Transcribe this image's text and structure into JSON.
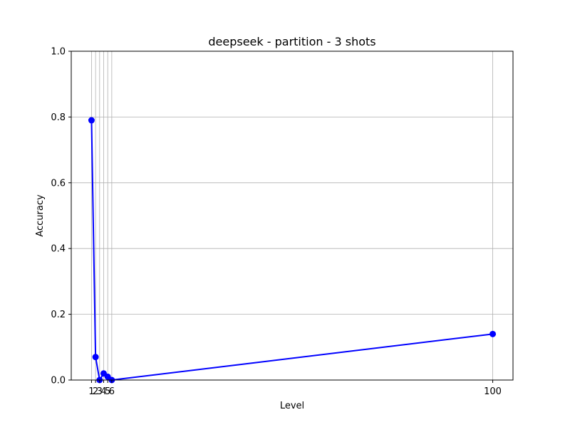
{
  "chart_data": {
    "type": "line",
    "title": "deepseek - partition - 3 shots",
    "xlabel": "Level",
    "ylabel": "Accuracy",
    "x": [
      1,
      2,
      3,
      4,
      5,
      6,
      100
    ],
    "x_tick_labels": [
      "1",
      "2",
      "3",
      "4",
      "5",
      "6",
      "100"
    ],
    "series": [
      {
        "values": [
          0.79,
          0.07,
          0.0,
          0.02,
          0.01,
          0.0,
          0.14
        ],
        "color": "#0000ff"
      }
    ],
    "xlim": [
      -4.0,
      105.0
    ],
    "ylim": [
      0.0,
      1.0
    ],
    "y_ticks": [
      0.0,
      0.2,
      0.4,
      0.6,
      0.8,
      1.0
    ],
    "y_tick_labels": [
      "0.0",
      "0.2",
      "0.4",
      "0.6",
      "0.8",
      "1.0"
    ],
    "grid": true,
    "marker": "circle"
  }
}
